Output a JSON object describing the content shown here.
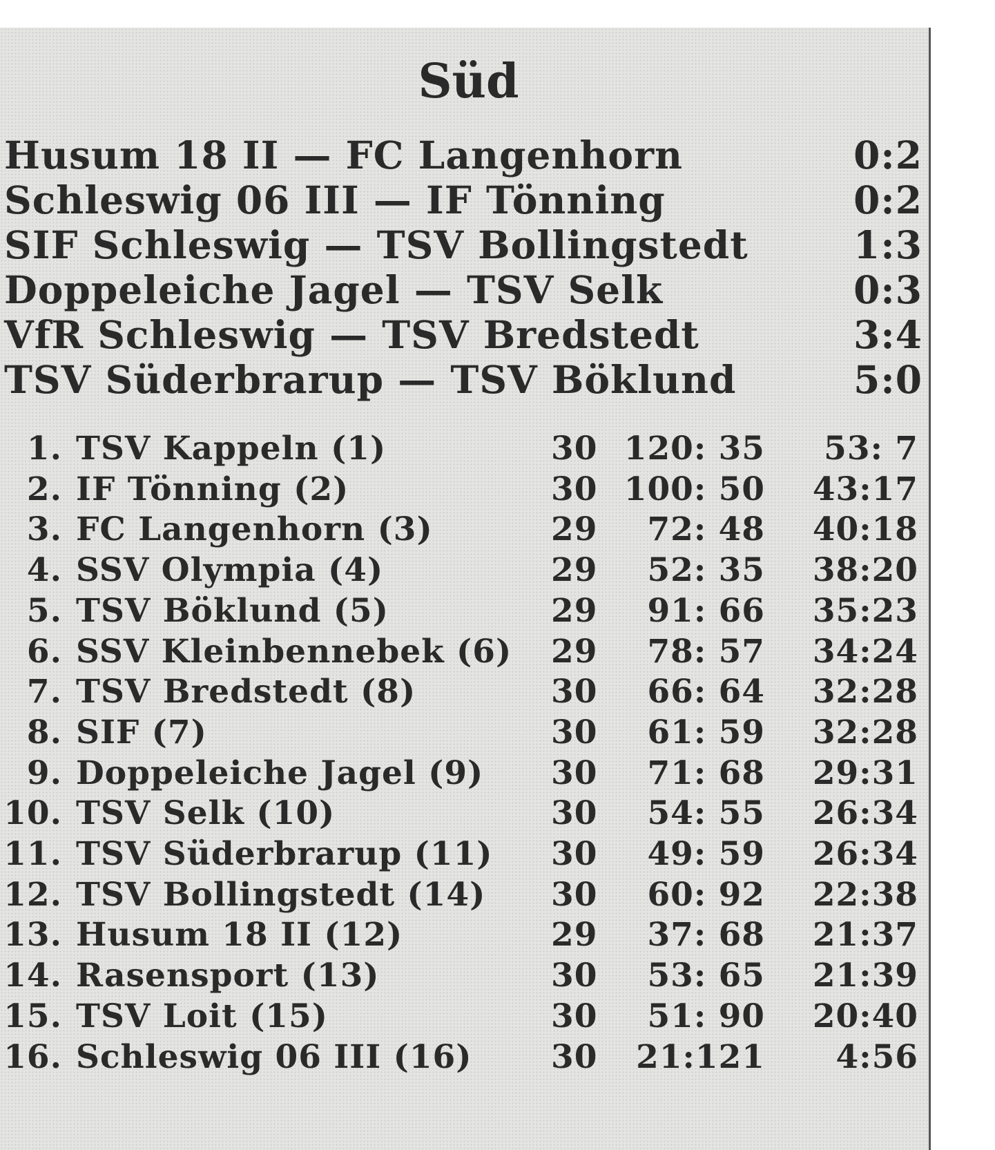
{
  "title": "Süd",
  "results": [
    {
      "match": "Husum 18 II — FC Langenhorn",
      "score": "0:2"
    },
    {
      "match": "Schleswig 06 III — IF Tönning",
      "score": "0:2"
    },
    {
      "match": "SIF Schleswig — TSV Bollingstedt",
      "score": "1:3"
    },
    {
      "match": "Doppeleiche Jagel — TSV Selk",
      "score": "0:3"
    },
    {
      "match": "VfR Schleswig — TSV Bredstedt",
      "score": "3:4"
    },
    {
      "match": "TSV Süderbrarup — TSV Böklund",
      "score": "5:0"
    }
  ],
  "standings": [
    {
      "rank": "1.",
      "team": "TSV Kappeln (1)",
      "games": "30",
      "goals": "120: 35",
      "points": "53: 7"
    },
    {
      "rank": "2.",
      "team": "IF Tönning (2)",
      "games": "30",
      "goals": "100: 50",
      "points": "43:17"
    },
    {
      "rank": "3.",
      "team": "FC Langenhorn (3)",
      "games": "29",
      "goals": "72: 48",
      "points": "40:18"
    },
    {
      "rank": "4.",
      "team": "SSV Olympia (4)",
      "games": "29",
      "goals": "52: 35",
      "points": "38:20"
    },
    {
      "rank": "5.",
      "team": "TSV Böklund (5)",
      "games": "29",
      "goals": "91: 66",
      "points": "35:23"
    },
    {
      "rank": "6.",
      "team": "SSV Kleinbennebek (6)",
      "games": "29",
      "goals": "78: 57",
      "points": "34:24"
    },
    {
      "rank": "7.",
      "team": "TSV Bredstedt (8)",
      "games": "30",
      "goals": "66: 64",
      "points": "32:28"
    },
    {
      "rank": "8.",
      "team": "SIF (7)",
      "games": "30",
      "goals": "61: 59",
      "points": "32:28"
    },
    {
      "rank": "9.",
      "team": "Doppeleiche Jagel (9)",
      "games": "30",
      "goals": "71: 68",
      "points": "29:31"
    },
    {
      "rank": "10.",
      "team": "TSV Selk (10)",
      "games": "30",
      "goals": "54: 55",
      "points": "26:34"
    },
    {
      "rank": "11.",
      "team": "TSV Süderbrarup (11)",
      "games": "30",
      "goals": "49: 59",
      "points": "26:34"
    },
    {
      "rank": "12.",
      "team": "TSV Bollingstedt (14)",
      "games": "30",
      "goals": "60: 92",
      "points": "22:38"
    },
    {
      "rank": "13.",
      "team": "Husum 18 II (12)",
      "games": "29",
      "goals": "37: 68",
      "points": "21:37"
    },
    {
      "rank": "14.",
      "team": "Rasensport (13)",
      "games": "30",
      "goals": "53: 65",
      "points": "21:39"
    },
    {
      "rank": "15.",
      "team": "TSV Loit (15)",
      "games": "30",
      "goals": "51: 90",
      "points": "20:40"
    },
    {
      "rank": "16.",
      "team": "Schleswig 06 III (16)",
      "games": "30",
      "goals": "21:121",
      "points": "4:56"
    }
  ]
}
